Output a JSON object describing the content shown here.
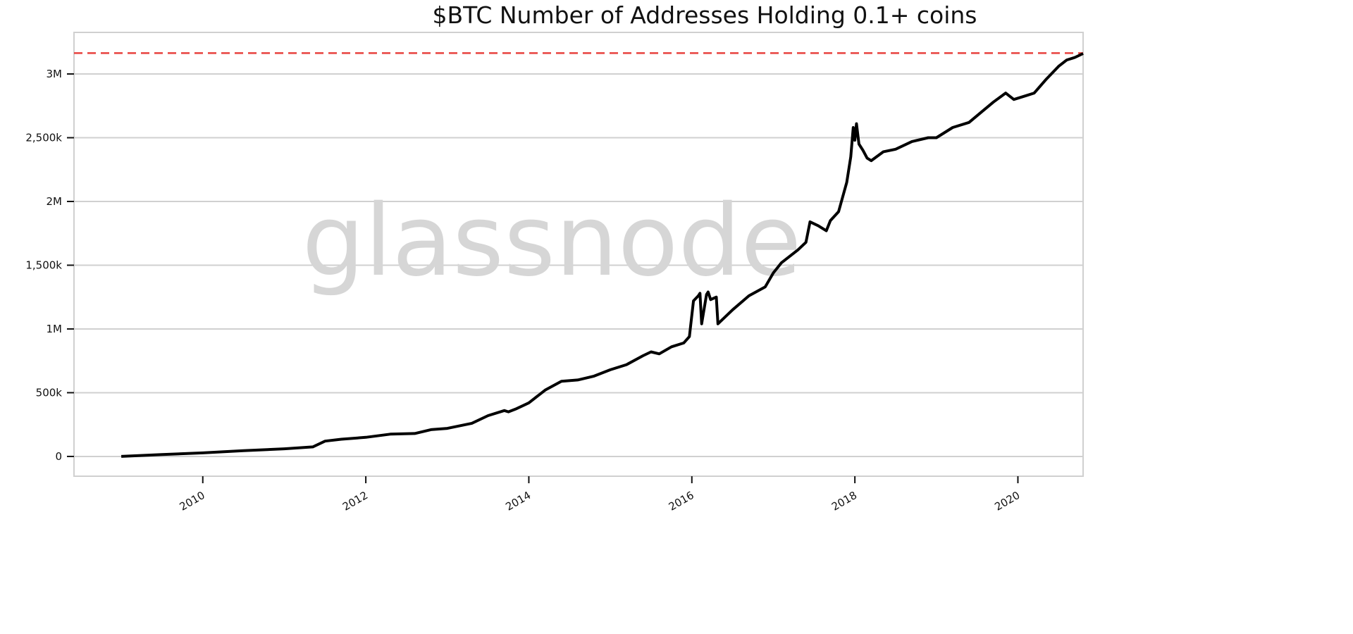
{
  "chart_data": {
    "type": "line",
    "title": "$BTC Number of Addresses Holding 0.1+ coins",
    "watermark": "glassnode",
    "xlabel": "",
    "ylabel": "",
    "xlim": [
      2008.42,
      2020.8
    ],
    "ylim": [
      -155000,
      3326000
    ],
    "grid": "horizontal",
    "x_ticks": [
      2010,
      2012,
      2014,
      2016,
      2018,
      2020
    ],
    "x_tick_labels": [
      "2010",
      "2012",
      "2014",
      "2016",
      "2018",
      "2020"
    ],
    "y_ticks": [
      0,
      500000,
      1000000,
      1500000,
      2000000,
      2500000,
      3000000
    ],
    "y_tick_labels": [
      "0",
      "500k",
      "1M",
      "1,500k",
      "2M",
      "2,500k",
      "3M"
    ],
    "reference_line": {
      "value": 3164000,
      "style": "dashed",
      "color": "#e8423f"
    },
    "colors": {
      "line": "#000000",
      "grid": "#d0d0d0",
      "watermark": "#d6d6d6"
    },
    "series": [
      {
        "name": "Addresses Holding 0.1+ coins",
        "points": [
          [
            2009.0,
            0
          ],
          [
            2009.5,
            15000
          ],
          [
            2010.0,
            28000
          ],
          [
            2010.5,
            45000
          ],
          [
            2011.0,
            60000
          ],
          [
            2011.35,
            75000
          ],
          [
            2011.5,
            120000
          ],
          [
            2011.7,
            135000
          ],
          [
            2012.0,
            150000
          ],
          [
            2012.3,
            175000
          ],
          [
            2012.6,
            180000
          ],
          [
            2012.8,
            210000
          ],
          [
            2013.0,
            220000
          ],
          [
            2013.3,
            260000
          ],
          [
            2013.5,
            320000
          ],
          [
            2013.7,
            360000
          ],
          [
            2013.75,
            350000
          ],
          [
            2013.85,
            375000
          ],
          [
            2014.0,
            420000
          ],
          [
            2014.2,
            520000
          ],
          [
            2014.4,
            590000
          ],
          [
            2014.6,
            600000
          ],
          [
            2014.8,
            630000
          ],
          [
            2015.0,
            680000
          ],
          [
            2015.2,
            720000
          ],
          [
            2015.4,
            790000
          ],
          [
            2015.5,
            820000
          ],
          [
            2015.6,
            805000
          ],
          [
            2015.75,
            860000
          ],
          [
            2015.9,
            890000
          ],
          [
            2015.97,
            940000
          ],
          [
            2016.02,
            1220000
          ],
          [
            2016.08,
            1260000
          ],
          [
            2016.1,
            1280000
          ],
          [
            2016.12,
            1040000
          ],
          [
            2016.18,
            1270000
          ],
          [
            2016.2,
            1290000
          ],
          [
            2016.23,
            1230000
          ],
          [
            2016.3,
            1250000
          ],
          [
            2016.32,
            1040000
          ],
          [
            2016.5,
            1150000
          ],
          [
            2016.7,
            1260000
          ],
          [
            2016.9,
            1330000
          ],
          [
            2017.0,
            1440000
          ],
          [
            2017.1,
            1520000
          ],
          [
            2017.3,
            1620000
          ],
          [
            2017.4,
            1680000
          ],
          [
            2017.45,
            1840000
          ],
          [
            2017.55,
            1810000
          ],
          [
            2017.65,
            1770000
          ],
          [
            2017.7,
            1850000
          ],
          [
            2017.8,
            1920000
          ],
          [
            2017.9,
            2150000
          ],
          [
            2017.95,
            2350000
          ],
          [
            2017.98,
            2580000
          ],
          [
            2018.0,
            2480000
          ],
          [
            2018.02,
            2610000
          ],
          [
            2018.05,
            2450000
          ],
          [
            2018.1,
            2400000
          ],
          [
            2018.15,
            2340000
          ],
          [
            2018.2,
            2320000
          ],
          [
            2018.35,
            2390000
          ],
          [
            2018.5,
            2410000
          ],
          [
            2018.7,
            2470000
          ],
          [
            2018.9,
            2500000
          ],
          [
            2019.0,
            2500000
          ],
          [
            2019.2,
            2580000
          ],
          [
            2019.4,
            2620000
          ],
          [
            2019.55,
            2700000
          ],
          [
            2019.7,
            2780000
          ],
          [
            2019.85,
            2850000
          ],
          [
            2019.95,
            2800000
          ],
          [
            2020.1,
            2830000
          ],
          [
            2020.2,
            2850000
          ],
          [
            2020.35,
            2960000
          ],
          [
            2020.5,
            3060000
          ],
          [
            2020.6,
            3110000
          ],
          [
            2020.7,
            3130000
          ],
          [
            2020.8,
            3160000
          ]
        ]
      }
    ]
  }
}
